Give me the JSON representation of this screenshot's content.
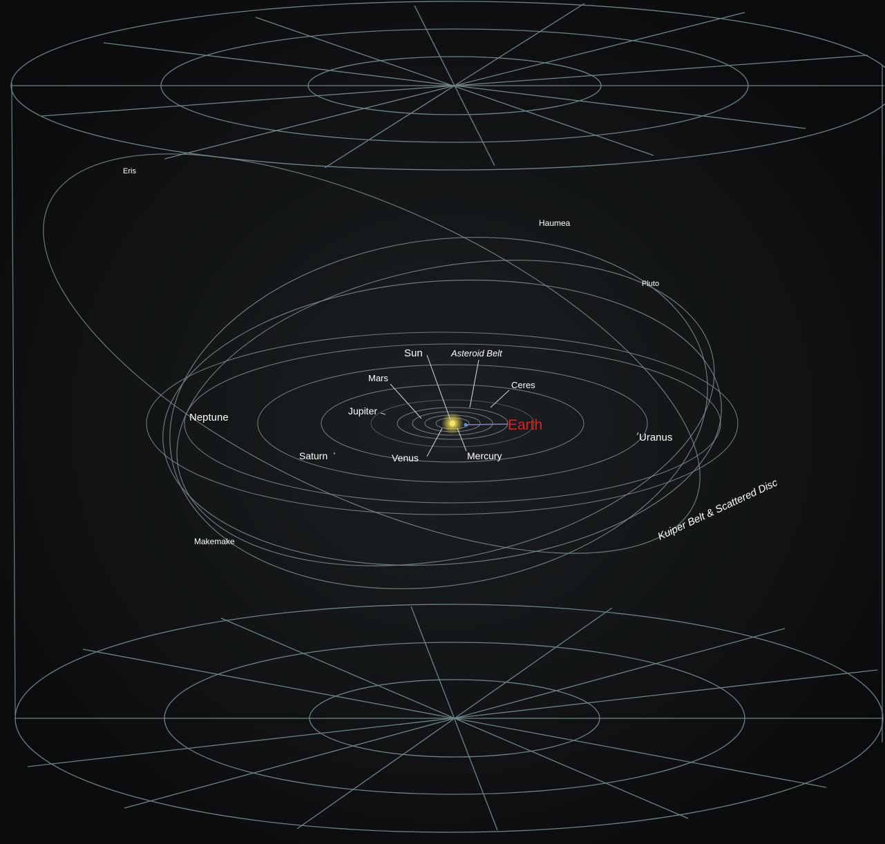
{
  "colors": {
    "background": "#0c0e0f",
    "grid": "#6e8489",
    "orbit": "#7a8a8c",
    "label": "#ffffff",
    "highlight": "#e02020",
    "sun": "#f2e36a"
  },
  "labels": {
    "eris": "Eris",
    "haumea": "Haumea",
    "pluto": "Pluto",
    "sun": "Sun",
    "asteroid_belt": "Asteroid Belt",
    "mars": "Mars",
    "ceres": "Ceres",
    "jupiter": "Jupiter",
    "earth": "Earth",
    "neptune": "Neptune",
    "uranus": "Uranus",
    "saturn": "Saturn",
    "venus": "Venus",
    "mercury": "Mercury",
    "makemake": "Makemake",
    "kuiper_belt": "Kuiper Belt & Scattered Disc"
  }
}
